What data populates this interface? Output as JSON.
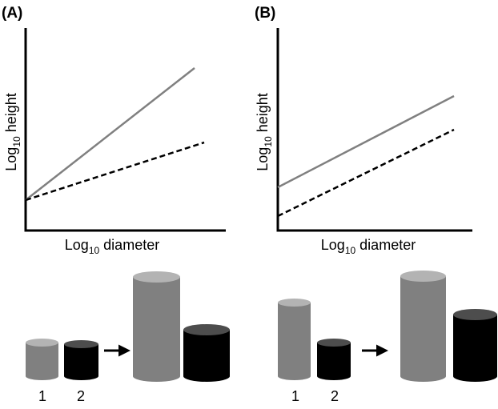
{
  "panels": [
    {
      "label": "(A)",
      "y_axis": {
        "text": "Log",
        "sub": "10",
        "rest": " height"
      },
      "x_axis": {
        "text": "Log",
        "sub": "10",
        "rest": " diameter"
      },
      "cylinder_labels": [
        "1",
        "2"
      ]
    },
    {
      "label": "(B)",
      "y_axis": {
        "text": "Log",
        "sub": "10",
        "rest": " height"
      },
      "x_axis": {
        "text": "Log",
        "sub": "10",
        "rest": " diameter"
      },
      "cylinder_labels": [
        "1",
        "2"
      ]
    }
  ]
}
